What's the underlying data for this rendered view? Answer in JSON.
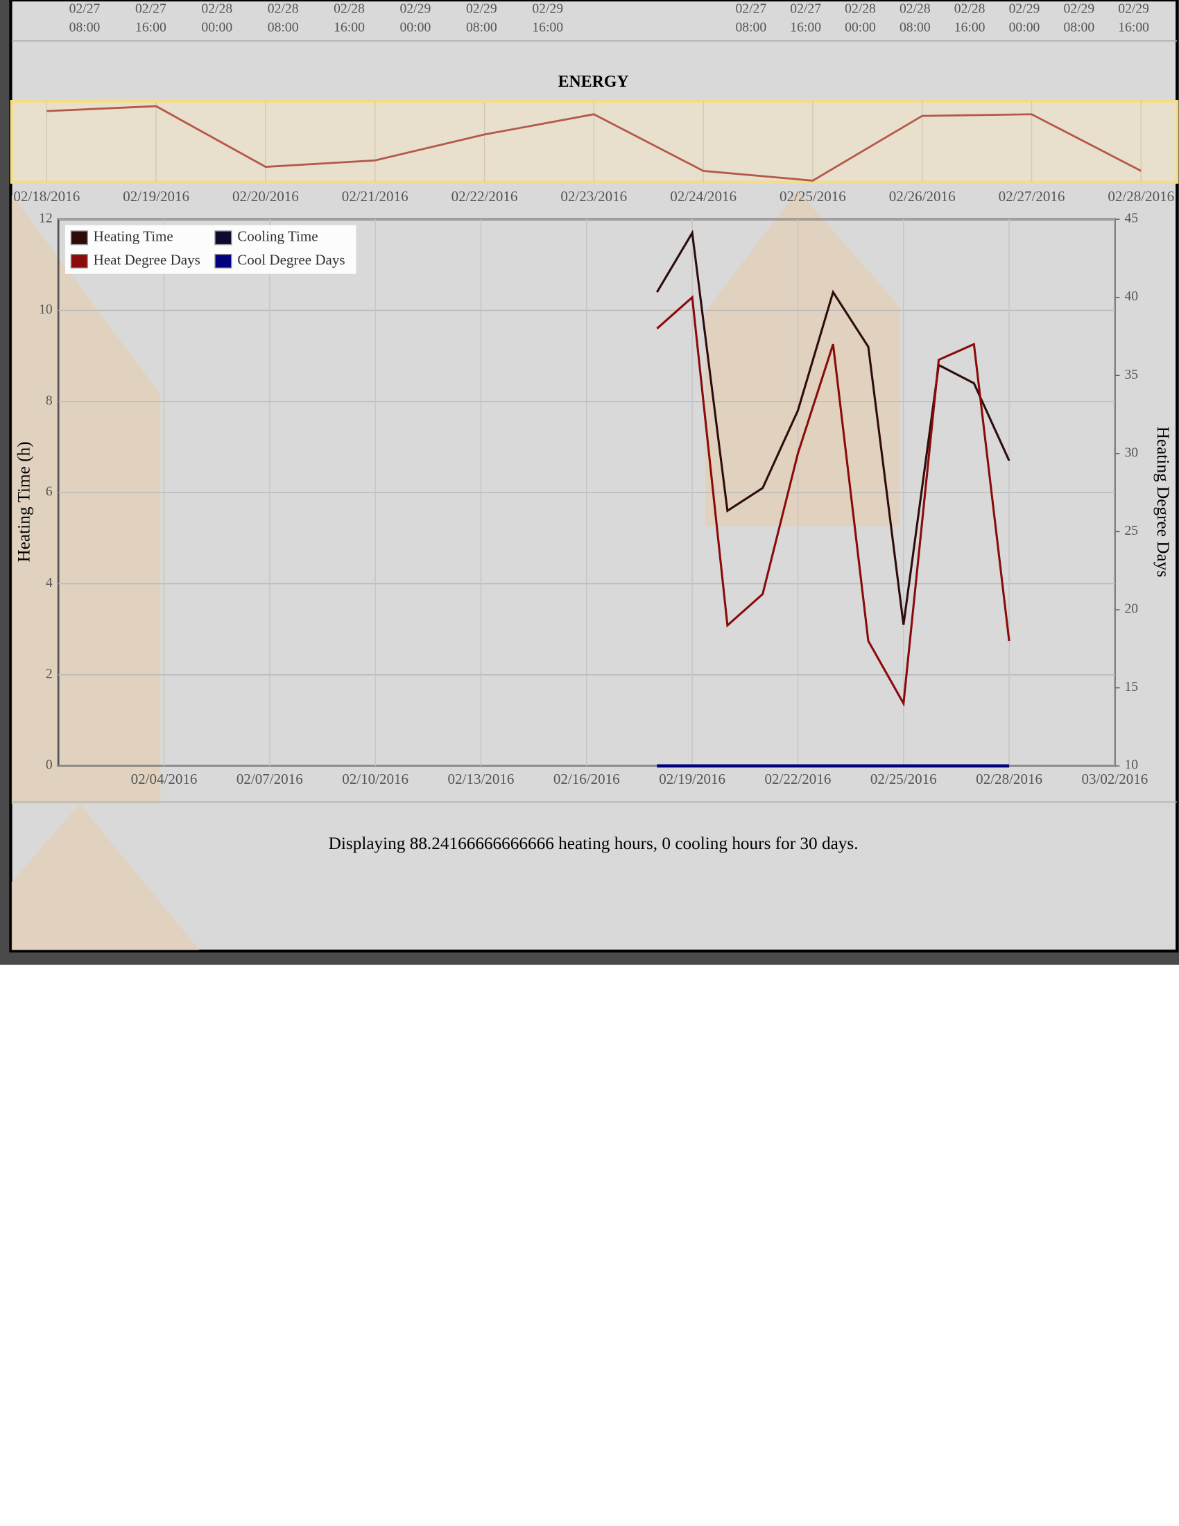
{
  "top_axis": {
    "groups": [
      [
        {
          "date": "02/27",
          "time": "08:00"
        },
        {
          "date": "02/27",
          "time": "16:00"
        },
        {
          "date": "02/28",
          "time": "00:00"
        },
        {
          "date": "02/28",
          "time": "08:00"
        },
        {
          "date": "02/28",
          "time": "16:00"
        },
        {
          "date": "02/29",
          "time": "00:00"
        },
        {
          "date": "02/29",
          "time": "08:00"
        },
        {
          "date": "02/29",
          "time": "16:00"
        }
      ],
      [
        {
          "date": "02/27",
          "time": "08:00"
        },
        {
          "date": "02/27",
          "time": "16:00"
        },
        {
          "date": "02/28",
          "time": "00:00"
        },
        {
          "date": "02/28",
          "time": "08:00"
        },
        {
          "date": "02/28",
          "time": "16:00"
        },
        {
          "date": "02/29",
          "time": "00:00"
        },
        {
          "date": "02/29",
          "time": "08:00"
        },
        {
          "date": "02/29",
          "time": "16:00"
        }
      ]
    ]
  },
  "chart_data": [
    {
      "type": "line",
      "title": "ENERGY",
      "categories": [
        "02/18/2016",
        "02/19/2016",
        "02/20/2016",
        "02/21/2016",
        "02/22/2016",
        "02/23/2016",
        "02/24/2016",
        "02/25/2016",
        "02/26/2016",
        "02/27/2016",
        "02/28/2016"
      ],
      "values": [
        8.8,
        9.4,
        1.9,
        2.7,
        5.9,
        8.4,
        1.4,
        0.2,
        8.2,
        8.4,
        1.4
      ],
      "color": "#b5584a",
      "ylim": [
        0,
        10
      ]
    },
    {
      "type": "line",
      "x": [
        "02/18/2016",
        "02/19/2016",
        "02/20/2016",
        "02/21/2016",
        "02/22/2016",
        "02/23/2016",
        "02/24/2016",
        "02/25/2016",
        "02/26/2016",
        "02/27/2016",
        "02/28/2016"
      ],
      "series": [
        {
          "name": "Heating Time",
          "color": "#2e0c0c",
          "values": [
            10.4,
            11.7,
            5.6,
            6.1,
            7.8,
            10.4,
            9.2,
            3.1,
            8.8,
            8.4,
            6.7
          ]
        },
        {
          "name": "Cooling Time",
          "color": "#0b0b30",
          "values": [
            0,
            0,
            0,
            0,
            0,
            0,
            0,
            0,
            0,
            0,
            0
          ]
        },
        {
          "name": "Heat Degree Days",
          "color": "#8b0a0a",
          "axis": "y2",
          "values": [
            38,
            40,
            19,
            21,
            30,
            37,
            18,
            14,
            36,
            37,
            18
          ]
        },
        {
          "name": "Cool Degree Days",
          "color": "#000080",
          "values": [
            0,
            0,
            0,
            0,
            0,
            0,
            0,
            0,
            0,
            0,
            0
          ]
        }
      ],
      "xlim": [
        "02/01/2016",
        "03/02/2016"
      ],
      "xticks": [
        "02/04/2016",
        "02/07/2016",
        "02/10/2016",
        "02/13/2016",
        "02/16/2016",
        "02/19/2016",
        "02/22/2016",
        "02/25/2016",
        "02/28/2016",
        "03/02/2016"
      ],
      "ylim": [
        0,
        12
      ],
      "yticks": [
        0,
        2,
        4,
        6,
        8,
        10,
        12
      ],
      "y2lim": [
        10,
        45
      ],
      "y2ticks": [
        10,
        15,
        20,
        25,
        30,
        35,
        40,
        45
      ],
      "ylabel": "Heating Time (h)",
      "y2label": "Heating Degree Days",
      "grid": true,
      "legend": "upper left"
    }
  ],
  "footer": "Displaying 88.24166666666666 heating hours, 0 cooling hours for 30 days."
}
